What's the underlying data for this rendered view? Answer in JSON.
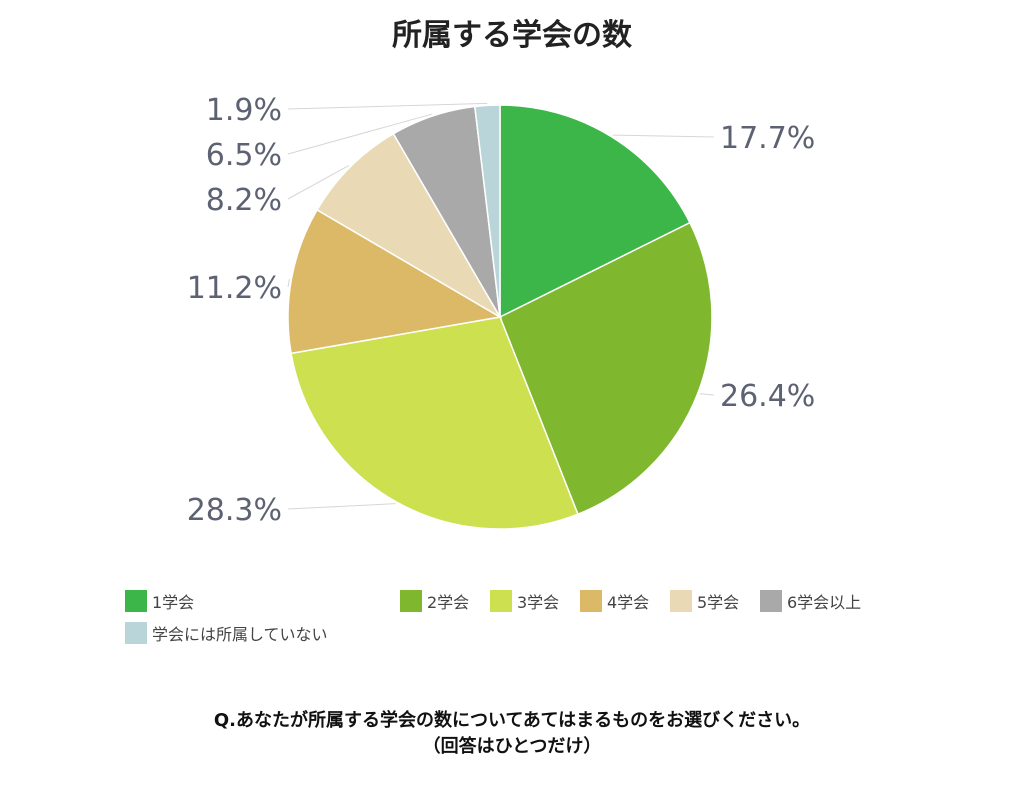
{
  "chart_data": {
    "type": "pie",
    "title": "所属する学会の数",
    "legend_position": "bottom",
    "slices": [
      {
        "label": "1学会",
        "value": 17.7,
        "value_label": "17.7%",
        "color": "#3cb648"
      },
      {
        "label": "2学会",
        "value": 26.4,
        "value_label": "26.4%",
        "color": "#7fb72e"
      },
      {
        "label": "3学会",
        "value": 28.3,
        "value_label": "28.3%",
        "color": "#cce050"
      },
      {
        "label": "4学会",
        "value": 11.2,
        "value_label": "11.2%",
        "color": "#dcb967"
      },
      {
        "label": "5学会",
        "value": 8.2,
        "value_label": "8.2%",
        "color": "#e9dab5"
      },
      {
        "label": "6学会以上",
        "value": 6.5,
        "value_label": "6.5%",
        "color": "#a9a9a9"
      },
      {
        "label": "学会には所属していない",
        "value": 1.9,
        "value_label": "1.9%",
        "color": "#b9d5da"
      }
    ]
  },
  "question": {
    "line1": "Q.あなたが所属する学会の数についてあてはまるものをお選びください。",
    "line2": "（回答はひとつだけ）"
  }
}
